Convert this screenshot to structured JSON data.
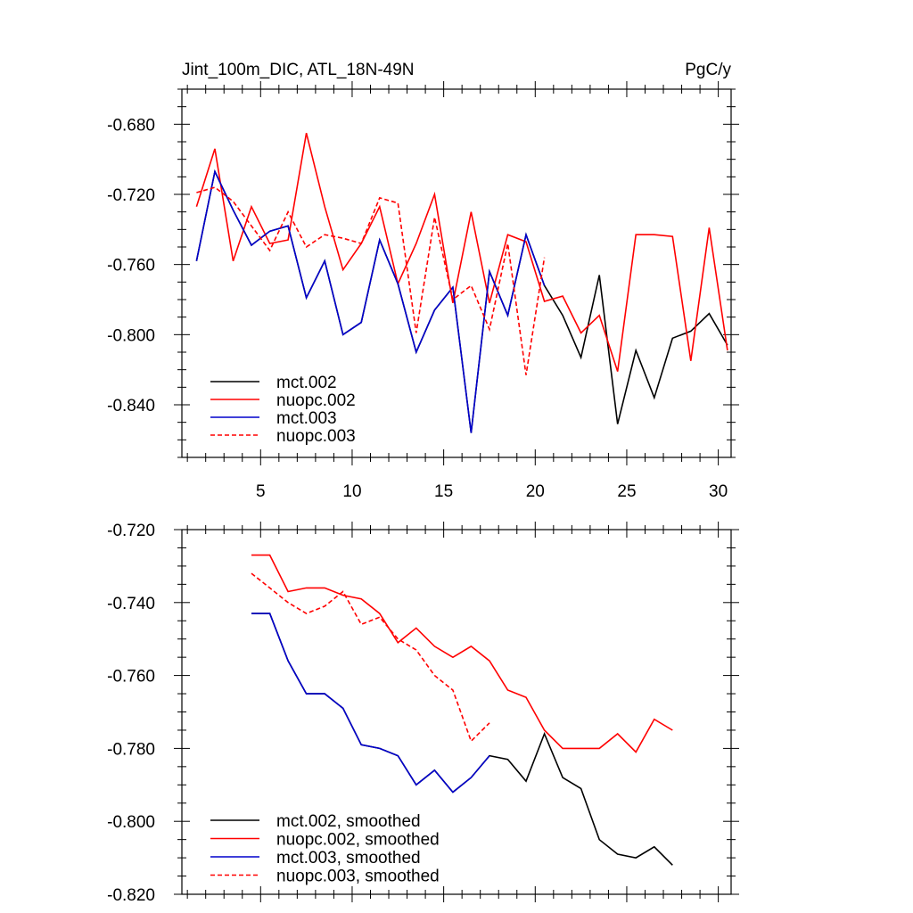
{
  "chart_data": [
    {
      "type": "line",
      "title_left": "Jint_100m_DIC, ATL_18N-49N",
      "title_right": "PgC/y",
      "xlabel": "",
      "ylabel": "",
      "xlim": [
        0.7,
        30.7
      ],
      "ylim": [
        -0.87,
        -0.66
      ],
      "x_ticks": [
        5,
        10,
        15,
        20,
        25,
        30
      ],
      "x_tick_labels": [
        "5",
        "10",
        "15",
        "20",
        "25",
        "30"
      ],
      "y_ticks": [
        -0.68,
        -0.72,
        -0.76,
        -0.8,
        -0.84
      ],
      "y_tick_labels": [
        "-0.680",
        "-0.720",
        "-0.760",
        "-0.800",
        "-0.840"
      ],
      "legend": [
        "mct.002",
        "nuopc.002",
        "mct.003",
        "nuopc.003"
      ],
      "legend_position": "bottom-left",
      "series": [
        {
          "name": "mct.002",
          "color": "#000000",
          "dash": "solid",
          "x": [
            1.5,
            2.5,
            3.5,
            4.5,
            5.5,
            6.5,
            7.5,
            8.5,
            9.5,
            10.5,
            11.5,
            12.5,
            13.5,
            14.5,
            15.5,
            16.5,
            17.5,
            18.5,
            19.5,
            20.5,
            21.5,
            22.5,
            23.5,
            24.5,
            25.5,
            26.5,
            27.5,
            28.5,
            29.5,
            30.5
          ],
          "values": [
            -0.758,
            -0.707,
            -0.729,
            -0.749,
            -0.741,
            -0.738,
            -0.779,
            -0.758,
            -0.8,
            -0.793,
            -0.746,
            -0.771,
            -0.81,
            -0.786,
            -0.773,
            -0.856,
            -0.764,
            -0.789,
            -0.743,
            -0.772,
            -0.789,
            -0.813,
            -0.766,
            -0.851,
            -0.809,
            -0.836,
            -0.802,
            -0.798,
            -0.788,
            -0.806
          ]
        },
        {
          "name": "nuopc.002",
          "color": "#ff0000",
          "dash": "solid",
          "x": [
            1.5,
            2.5,
            3.5,
            4.5,
            5.5,
            6.5,
            7.5,
            8.5,
            9.5,
            10.5,
            11.5,
            12.5,
            13.5,
            14.5,
            15.5,
            16.5,
            17.5,
            18.5,
            19.5,
            20.5,
            21.5,
            22.5,
            23.5,
            24.5,
            25.5,
            26.5,
            27.5,
            28.5,
            29.5,
            30.5
          ],
          "values": [
            -0.727,
            -0.694,
            -0.758,
            -0.727,
            -0.748,
            -0.746,
            -0.685,
            -0.727,
            -0.763,
            -0.748,
            -0.727,
            -0.771,
            -0.748,
            -0.72,
            -0.782,
            -0.73,
            -0.782,
            -0.743,
            -0.747,
            -0.781,
            -0.778,
            -0.799,
            -0.789,
            -0.821,
            -0.743,
            -0.743,
            -0.744,
            -0.815,
            -0.739,
            -0.809
          ]
        },
        {
          "name": "mct.003",
          "color": "#0000cc",
          "dash": "solid",
          "x": [
            1.5,
            2.5,
            3.5,
            4.5,
            5.5,
            6.5,
            7.5,
            8.5,
            9.5,
            10.5,
            11.5,
            12.5,
            13.5,
            14.5,
            15.5,
            16.5,
            17.5,
            18.5,
            19.5,
            20.5
          ],
          "values": [
            -0.758,
            -0.707,
            -0.729,
            -0.749,
            -0.741,
            -0.738,
            -0.779,
            -0.758,
            -0.8,
            -0.793,
            -0.746,
            -0.771,
            -0.81,
            -0.786,
            -0.773,
            -0.856,
            -0.764,
            -0.789,
            -0.743,
            -0.772
          ]
        },
        {
          "name": "nuopc.003",
          "color": "#ff0000",
          "dash": "dashed",
          "x": [
            1.5,
            2.5,
            3.5,
            4.5,
            5.5,
            6.5,
            7.5,
            8.5,
            9.5,
            10.5,
            11.5,
            12.5,
            13.5,
            14.5,
            15.5,
            16.5,
            17.5,
            18.5,
            19.5,
            20.5
          ],
          "values": [
            -0.719,
            -0.716,
            -0.724,
            -0.738,
            -0.752,
            -0.73,
            -0.75,
            -0.743,
            -0.745,
            -0.748,
            -0.722,
            -0.725,
            -0.799,
            -0.733,
            -0.78,
            -0.772,
            -0.797,
            -0.748,
            -0.823,
            -0.756
          ]
        }
      ]
    },
    {
      "type": "line",
      "title_left": "",
      "title_right": "",
      "xlabel": "",
      "ylabel": "",
      "xlim": [
        0.7,
        30.7
      ],
      "ylim": [
        -0.82,
        -0.72
      ],
      "x_ticks": [
        5,
        10,
        15,
        20,
        25,
        30
      ],
      "x_tick_labels": [],
      "y_ticks": [
        -0.72,
        -0.74,
        -0.76,
        -0.78,
        -0.8,
        -0.82
      ],
      "y_tick_labels": [
        "-0.720",
        "-0.740",
        "-0.760",
        "-0.780",
        "-0.800",
        "-0.820"
      ],
      "legend": [
        "mct.002, smoothed",
        "nuopc.002, smoothed",
        "mct.003, smoothed",
        "nuopc.003, smoothed"
      ],
      "legend_position": "bottom-left",
      "series": [
        {
          "name": "mct.002, smoothed",
          "color": "#000000",
          "dash": "solid",
          "x": [
            4.5,
            5.5,
            6.5,
            7.5,
            8.5,
            9.5,
            10.5,
            11.5,
            12.5,
            13.5,
            14.5,
            15.5,
            16.5,
            17.5,
            18.5,
            19.5,
            20.5,
            21.5,
            22.5,
            23.5,
            24.5,
            25.5,
            26.5,
            27.5
          ],
          "values": [
            -0.743,
            -0.743,
            -0.756,
            -0.765,
            -0.765,
            -0.769,
            -0.779,
            -0.78,
            -0.782,
            -0.79,
            -0.786,
            -0.792,
            -0.788,
            -0.782,
            -0.783,
            -0.789,
            -0.776,
            -0.788,
            -0.791,
            -0.805,
            -0.809,
            -0.81,
            -0.807,
            -0.812
          ]
        },
        {
          "name": "nuopc.002, smoothed",
          "color": "#ff0000",
          "dash": "solid",
          "x": [
            4.5,
            5.5,
            6.5,
            7.5,
            8.5,
            9.5,
            10.5,
            11.5,
            12.5,
            13.5,
            14.5,
            15.5,
            16.5,
            17.5,
            18.5,
            19.5,
            20.5,
            21.5,
            22.5,
            23.5,
            24.5,
            25.5,
            26.5,
            27.5
          ],
          "values": [
            -0.727,
            -0.727,
            -0.737,
            -0.736,
            -0.736,
            -0.738,
            -0.739,
            -0.743,
            -0.751,
            -0.747,
            -0.752,
            -0.755,
            -0.752,
            -0.756,
            -0.764,
            -0.766,
            -0.775,
            -0.78,
            -0.78,
            -0.78,
            -0.776,
            -0.781,
            -0.772,
            -0.775
          ]
        },
        {
          "name": "mct.003, smoothed",
          "color": "#0000cc",
          "dash": "solid",
          "x": [
            4.5,
            5.5,
            6.5,
            7.5,
            8.5,
            9.5,
            10.5,
            11.5,
            12.5,
            13.5,
            14.5,
            15.5,
            16.5,
            17.5
          ],
          "values": [
            -0.743,
            -0.743,
            -0.756,
            -0.765,
            -0.765,
            -0.769,
            -0.779,
            -0.78,
            -0.782,
            -0.79,
            -0.786,
            -0.792,
            -0.788,
            -0.782
          ]
        },
        {
          "name": "nuopc.003, smoothed",
          "color": "#ff0000",
          "dash": "dashed",
          "x": [
            4.5,
            5.5,
            6.5,
            7.5,
            8.5,
            9.5,
            10.5,
            11.5,
            12.5,
            13.5,
            14.5,
            15.5,
            16.5,
            17.5
          ],
          "values": [
            -0.732,
            -0.736,
            -0.74,
            -0.743,
            -0.741,
            -0.737,
            -0.746,
            -0.744,
            -0.75,
            -0.753,
            -0.76,
            -0.764,
            -0.778,
            -0.773
          ]
        }
      ]
    }
  ]
}
